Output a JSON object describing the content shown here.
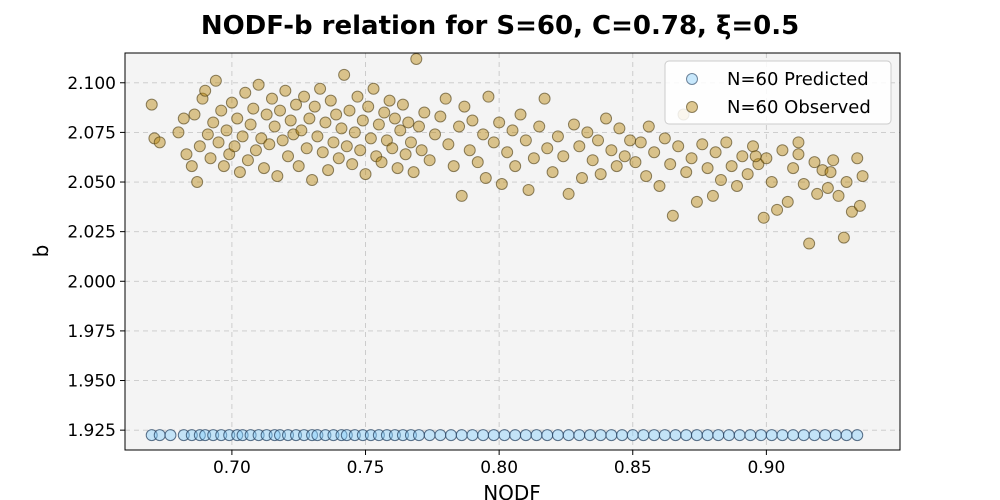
{
  "chart_data": {
    "type": "scatter",
    "title": "NODF-b relation for S=60, C=0.78, ξ=0.5",
    "xlabel": "NODF",
    "ylabel": "b",
    "xlim": [
      0.66,
      0.95
    ],
    "ylim": [
      1.915,
      2.115
    ],
    "x_ticks": [
      "0.70",
      "0.75",
      "0.80",
      "0.85",
      "0.90"
    ],
    "x_tick_values": [
      0.7,
      0.75,
      0.8,
      0.85,
      0.9
    ],
    "y_ticks": [
      "1.925",
      "1.950",
      "1.975",
      "2.000",
      "2.025",
      "2.050",
      "2.075",
      "2.100"
    ],
    "y_tick_values": [
      1.925,
      1.95,
      1.975,
      2.0,
      2.025,
      2.05,
      2.075,
      2.1
    ],
    "grid": true,
    "legend_position": "top-right",
    "series": [
      {
        "name": "N=60 Predicted",
        "color": "#87cefa",
        "y_constant": 1.9225,
        "x": [
          0.67,
          0.673,
          0.677,
          0.682,
          0.685,
          0.688,
          0.69,
          0.693,
          0.696,
          0.699,
          0.702,
          0.704,
          0.707,
          0.71,
          0.713,
          0.716,
          0.718,
          0.721,
          0.724,
          0.727,
          0.73,
          0.732,
          0.735,
          0.738,
          0.741,
          0.743,
          0.746,
          0.749,
          0.752,
          0.755,
          0.758,
          0.761,
          0.764,
          0.767,
          0.77,
          0.774,
          0.778,
          0.782,
          0.786,
          0.79,
          0.794,
          0.798,
          0.802,
          0.806,
          0.81,
          0.814,
          0.818,
          0.822,
          0.826,
          0.83,
          0.834,
          0.838,
          0.842,
          0.846,
          0.85,
          0.854,
          0.858,
          0.862,
          0.866,
          0.87,
          0.874,
          0.878,
          0.882,
          0.886,
          0.89,
          0.894,
          0.898,
          0.902,
          0.906,
          0.91,
          0.914,
          0.918,
          0.922,
          0.926,
          0.93,
          0.934
        ]
      },
      {
        "name": "N=60 Observed",
        "color": "#b8860b",
        "points": [
          [
            0.67,
            2.089
          ],
          [
            0.671,
            2.072
          ],
          [
            0.673,
            2.07
          ],
          [
            0.68,
            2.075
          ],
          [
            0.682,
            2.082
          ],
          [
            0.683,
            2.064
          ],
          [
            0.685,
            2.058
          ],
          [
            0.686,
            2.084
          ],
          [
            0.687,
            2.05
          ],
          [
            0.688,
            2.068
          ],
          [
            0.689,
            2.092
          ],
          [
            0.69,
            2.096
          ],
          [
            0.691,
            2.074
          ],
          [
            0.692,
            2.062
          ],
          [
            0.693,
            2.08
          ],
          [
            0.694,
            2.101
          ],
          [
            0.695,
            2.07
          ],
          [
            0.696,
            2.086
          ],
          [
            0.697,
            2.058
          ],
          [
            0.698,
            2.076
          ],
          [
            0.699,
            2.064
          ],
          [
            0.7,
            2.09
          ],
          [
            0.701,
            2.068
          ],
          [
            0.702,
            2.082
          ],
          [
            0.703,
            2.055
          ],
          [
            0.704,
            2.073
          ],
          [
            0.705,
            2.095
          ],
          [
            0.706,
            2.061
          ],
          [
            0.707,
            2.079
          ],
          [
            0.708,
            2.087
          ],
          [
            0.709,
            2.066
          ],
          [
            0.71,
            2.099
          ],
          [
            0.711,
            2.072
          ],
          [
            0.712,
            2.057
          ],
          [
            0.713,
            2.084
          ],
          [
            0.714,
            2.069
          ],
          [
            0.715,
            2.092
          ],
          [
            0.716,
            2.078
          ],
          [
            0.717,
            2.053
          ],
          [
            0.718,
            2.086
          ],
          [
            0.719,
            2.071
          ],
          [
            0.72,
            2.096
          ],
          [
            0.721,
            2.063
          ],
          [
            0.722,
            2.081
          ],
          [
            0.723,
            2.074
          ],
          [
            0.724,
            2.089
          ],
          [
            0.725,
            2.058
          ],
          [
            0.726,
            2.076
          ],
          [
            0.727,
            2.093
          ],
          [
            0.728,
            2.067
          ],
          [
            0.729,
            2.082
          ],
          [
            0.73,
            2.051
          ],
          [
            0.731,
            2.088
          ],
          [
            0.732,
            2.073
          ],
          [
            0.733,
            2.097
          ],
          [
            0.734,
            2.065
          ],
          [
            0.735,
            2.08
          ],
          [
            0.736,
            2.056
          ],
          [
            0.737,
            2.091
          ],
          [
            0.738,
            2.07
          ],
          [
            0.739,
            2.084
          ],
          [
            0.74,
            2.062
          ],
          [
            0.741,
            2.077
          ],
          [
            0.742,
            2.104
          ],
          [
            0.743,
            2.068
          ],
          [
            0.744,
            2.086
          ],
          [
            0.745,
            2.059
          ],
          [
            0.746,
            2.075
          ],
          [
            0.747,
            2.093
          ],
          [
            0.748,
            2.066
          ],
          [
            0.749,
            2.081
          ],
          [
            0.75,
            2.054
          ],
          [
            0.751,
            2.088
          ],
          [
            0.752,
            2.072
          ],
          [
            0.753,
            2.097
          ],
          [
            0.754,
            2.063
          ],
          [
            0.755,
            2.079
          ],
          [
            0.756,
            2.06
          ],
          [
            0.757,
            2.085
          ],
          [
            0.758,
            2.071
          ],
          [
            0.759,
            2.091
          ],
          [
            0.76,
            2.067
          ],
          [
            0.761,
            2.082
          ],
          [
            0.762,
            2.057
          ],
          [
            0.763,
            2.076
          ],
          [
            0.764,
            2.089
          ],
          [
            0.765,
            2.064
          ],
          [
            0.766,
            2.08
          ],
          [
            0.767,
            2.07
          ],
          [
            0.768,
            2.055
          ],
          [
            0.769,
            2.112
          ],
          [
            0.77,
            2.078
          ],
          [
            0.771,
            2.066
          ],
          [
            0.772,
            2.085
          ],
          [
            0.774,
            2.061
          ],
          [
            0.776,
            2.074
          ],
          [
            0.778,
            2.083
          ],
          [
            0.78,
            2.092
          ],
          [
            0.781,
            2.069
          ],
          [
            0.783,
            2.058
          ],
          [
            0.785,
            2.078
          ],
          [
            0.786,
            2.043
          ],
          [
            0.787,
            2.088
          ],
          [
            0.789,
            2.066
          ],
          [
            0.79,
            2.081
          ],
          [
            0.792,
            2.06
          ],
          [
            0.794,
            2.074
          ],
          [
            0.795,
            2.052
          ],
          [
            0.796,
            2.093
          ],
          [
            0.798,
            2.07
          ],
          [
            0.8,
            2.08
          ],
          [
            0.801,
            2.049
          ],
          [
            0.803,
            2.065
          ],
          [
            0.805,
            2.076
          ],
          [
            0.806,
            2.058
          ],
          [
            0.808,
            2.084
          ],
          [
            0.81,
            2.071
          ],
          [
            0.811,
            2.046
          ],
          [
            0.813,
            2.062
          ],
          [
            0.815,
            2.078
          ],
          [
            0.817,
            2.092
          ],
          [
            0.818,
            2.067
          ],
          [
            0.82,
            2.055
          ],
          [
            0.822,
            2.073
          ],
          [
            0.824,
            2.063
          ],
          [
            0.826,
            2.044
          ],
          [
            0.828,
            2.079
          ],
          [
            0.83,
            2.068
          ],
          [
            0.831,
            2.052
          ],
          [
            0.833,
            2.075
          ],
          [
            0.835,
            2.061
          ],
          [
            0.837,
            2.071
          ],
          [
            0.838,
            2.054
          ],
          [
            0.84,
            2.082
          ],
          [
            0.842,
            2.066
          ],
          [
            0.844,
            2.058
          ],
          [
            0.845,
            2.077
          ],
          [
            0.847,
            2.063
          ],
          [
            0.849,
            2.071
          ],
          [
            0.851,
            2.06
          ],
          [
            0.853,
            2.07
          ],
          [
            0.855,
            2.053
          ],
          [
            0.856,
            2.078
          ],
          [
            0.858,
            2.065
          ],
          [
            0.86,
            2.048
          ],
          [
            0.862,
            2.072
          ],
          [
            0.864,
            2.059
          ],
          [
            0.865,
            2.033
          ],
          [
            0.867,
            2.068
          ],
          [
            0.869,
            2.084
          ],
          [
            0.87,
            2.055
          ],
          [
            0.872,
            2.062
          ],
          [
            0.874,
            2.04
          ],
          [
            0.876,
            2.069
          ],
          [
            0.878,
            2.057
          ],
          [
            0.88,
            2.043
          ],
          [
            0.881,
            2.065
          ],
          [
            0.883,
            2.051
          ],
          [
            0.885,
            2.07
          ],
          [
            0.887,
            2.058
          ],
          [
            0.889,
            2.048
          ],
          [
            0.891,
            2.063
          ],
          [
            0.893,
            2.054
          ],
          [
            0.895,
            2.068
          ],
          [
            0.897,
            2.059
          ],
          [
            0.899,
            2.032
          ],
          [
            0.9,
            2.062
          ],
          [
            0.902,
            2.05
          ],
          [
            0.904,
            2.036
          ],
          [
            0.906,
            2.066
          ],
          [
            0.908,
            2.04
          ],
          [
            0.91,
            2.057
          ],
          [
            0.912,
            2.064
          ],
          [
            0.914,
            2.049
          ],
          [
            0.916,
            2.019
          ],
          [
            0.918,
            2.06
          ],
          [
            0.919,
            2.044
          ],
          [
            0.921,
            2.056
          ],
          [
            0.923,
            2.047
          ],
          [
            0.925,
            2.061
          ],
          [
            0.927,
            2.043
          ],
          [
            0.929,
            2.022
          ],
          [
            0.93,
            2.05
          ],
          [
            0.932,
            2.035
          ],
          [
            0.934,
            2.062
          ],
          [
            0.935,
            2.038
          ],
          [
            0.936,
            2.053
          ],
          [
            0.924,
            2.055
          ],
          [
            0.912,
            2.07
          ],
          [
            0.896,
            2.063
          ]
        ]
      }
    ]
  }
}
